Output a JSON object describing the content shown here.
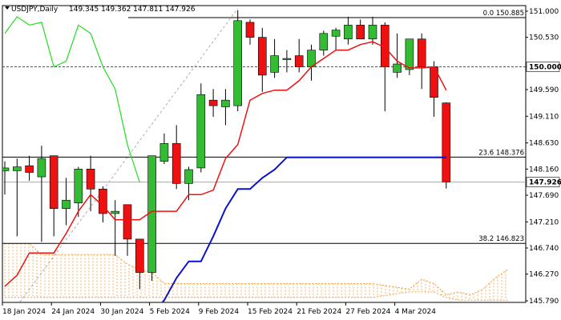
{
  "header": {
    "symbol": "USDJPY,Daily",
    "ohlc": "149.345 149.362 147.811 147.926"
  },
  "colors": {
    "bull_candle": "#33bb33",
    "bear_candle": "#ee1111",
    "tenkan": "#ee1111",
    "kijun": "#0a14c8",
    "chikou": "#22dd22",
    "cloud": "#f0a040",
    "fib_line": "#000000",
    "current_price_line": "#aaaaaa",
    "level_150_line": "#cc2222"
  },
  "chart_data": {
    "type": "candlestick",
    "title": "USDJPY,Daily",
    "ylim": [
      145.79,
      151.0
    ],
    "y_ticks": [
      "151.000",
      "150.530",
      "150.000",
      "149.590",
      "149.110",
      "148.630",
      "148.160",
      "147.690",
      "147.210",
      "146.740",
      "146.270",
      "145.790"
    ],
    "x_ticks": [
      {
        "index": 0,
        "label": "18 Jan 2024"
      },
      {
        "index": 4,
        "label": "24 Jan 2024"
      },
      {
        "index": 8,
        "label": "30 Jan 2024"
      },
      {
        "index": 12,
        "label": "5 Feb 2024"
      },
      {
        "index": 16,
        "label": "9 Feb 2024"
      },
      {
        "index": 20,
        "label": "15 Feb 2024"
      },
      {
        "index": 24,
        "label": "21 Feb 2024"
      },
      {
        "index": 28,
        "label": "27 Feb 2024"
      },
      {
        "index": 32,
        "label": "4 Mar 2024"
      }
    ],
    "candles": [
      {
        "o": 148.13,
        "h": 148.3,
        "l": 147.7,
        "c": 148.18
      },
      {
        "o": 148.13,
        "h": 148.35,
        "l": 146.95,
        "c": 148.2
      },
      {
        "o": 148.22,
        "h": 148.4,
        "l": 147.95,
        "c": 148.1
      },
      {
        "o": 148.02,
        "h": 148.58,
        "l": 146.85,
        "c": 148.35
      },
      {
        "o": 148.4,
        "h": 148.4,
        "l": 146.95,
        "c": 147.45
      },
      {
        "o": 147.45,
        "h": 148.0,
        "l": 147.15,
        "c": 147.6
      },
      {
        "o": 147.55,
        "h": 148.2,
        "l": 147.3,
        "c": 148.16
      },
      {
        "o": 148.16,
        "h": 148.4,
        "l": 147.4,
        "c": 147.8
      },
      {
        "o": 147.8,
        "h": 147.85,
        "l": 147.2,
        "c": 147.36
      },
      {
        "o": 147.36,
        "h": 147.6,
        "l": 146.6,
        "c": 147.4
      },
      {
        "o": 147.52,
        "h": 147.52,
        "l": 146.6,
        "c": 146.9
      },
      {
        "o": 146.9,
        "h": 146.9,
        "l": 146.0,
        "c": 146.3
      },
      {
        "o": 146.3,
        "h": 148.4,
        "l": 146.15,
        "c": 148.4
      },
      {
        "o": 148.3,
        "h": 148.8,
        "l": 148.25,
        "c": 148.62
      },
      {
        "o": 148.62,
        "h": 148.95,
        "l": 147.8,
        "c": 147.9
      },
      {
        "o": 147.9,
        "h": 148.2,
        "l": 147.6,
        "c": 148.15
      },
      {
        "o": 148.18,
        "h": 149.7,
        "l": 148.1,
        "c": 149.5
      },
      {
        "o": 149.4,
        "h": 149.6,
        "l": 149.1,
        "c": 149.3
      },
      {
        "o": 149.28,
        "h": 149.6,
        "l": 148.95,
        "c": 149.4
      },
      {
        "o": 149.3,
        "h": 151.02,
        "l": 149.2,
        "c": 150.83
      },
      {
        "o": 150.8,
        "h": 150.85,
        "l": 150.4,
        "c": 150.53
      },
      {
        "o": 150.53,
        "h": 150.7,
        "l": 149.55,
        "c": 149.85
      },
      {
        "o": 149.9,
        "h": 150.5,
        "l": 149.8,
        "c": 150.2
      },
      {
        "o": 150.13,
        "h": 150.3,
        "l": 149.9,
        "c": 150.15
      },
      {
        "o": 150.2,
        "h": 150.5,
        "l": 149.9,
        "c": 150.0
      },
      {
        "o": 150.0,
        "h": 150.4,
        "l": 149.75,
        "c": 150.3
      },
      {
        "o": 150.3,
        "h": 150.65,
        "l": 150.2,
        "c": 150.6
      },
      {
        "o": 150.55,
        "h": 150.7,
        "l": 150.3,
        "c": 150.66
      },
      {
        "o": 150.5,
        "h": 150.9,
        "l": 150.4,
        "c": 150.75
      },
      {
        "o": 150.75,
        "h": 150.85,
        "l": 150.5,
        "c": 150.5
      },
      {
        "o": 150.5,
        "h": 150.9,
        "l": 150.4,
        "c": 150.75
      },
      {
        "o": 150.75,
        "h": 150.8,
        "l": 149.2,
        "c": 150.0
      },
      {
        "o": 149.9,
        "h": 150.6,
        "l": 149.8,
        "c": 150.05
      },
      {
        "o": 149.95,
        "h": 150.5,
        "l": 149.85,
        "c": 150.5
      },
      {
        "o": 150.5,
        "h": 150.6,
        "l": 149.6,
        "c": 150.0
      },
      {
        "o": 150.0,
        "h": 150.1,
        "l": 149.1,
        "c": 149.45
      },
      {
        "o": 149.35,
        "h": 149.36,
        "l": 147.81,
        "c": 147.93
      }
    ],
    "tenkan": [
      [
        0,
        146.05
      ],
      [
        1,
        146.25
      ],
      [
        2,
        146.65
      ],
      [
        3,
        146.65
      ],
      [
        4,
        146.65
      ],
      [
        5,
        147.0
      ],
      [
        6,
        147.4
      ],
      [
        7,
        147.7
      ],
      [
        8,
        147.5
      ],
      [
        9,
        147.25
      ],
      [
        10,
        147.25
      ],
      [
        11,
        147.25
      ],
      [
        12,
        147.4
      ],
      [
        13,
        147.4
      ],
      [
        14,
        147.4
      ],
      [
        15,
        147.7
      ],
      [
        16,
        147.7
      ],
      [
        17,
        147.78
      ],
      [
        18,
        148.35
      ],
      [
        19,
        148.6
      ],
      [
        20,
        149.4
      ],
      [
        21,
        149.52
      ],
      [
        22,
        149.58
      ],
      [
        23,
        149.58
      ],
      [
        24,
        149.75
      ],
      [
        25,
        150.0
      ],
      [
        26,
        150.15
      ],
      [
        27,
        150.3
      ],
      [
        28,
        150.3
      ],
      [
        29,
        150.4
      ],
      [
        30,
        150.45
      ],
      [
        31,
        150.35
      ],
      [
        32,
        150.1
      ],
      [
        33,
        149.98
      ],
      [
        34,
        149.98
      ],
      [
        35,
        150.0
      ],
      [
        36,
        149.58
      ]
    ],
    "kijun": [
      [
        12,
        145.55
      ],
      [
        13,
        145.8
      ],
      [
        14,
        146.2
      ],
      [
        15,
        146.5
      ],
      [
        16,
        146.5
      ],
      [
        17,
        146.95
      ],
      [
        18,
        147.45
      ],
      [
        19,
        147.8
      ],
      [
        20,
        147.8
      ],
      [
        21,
        148.0
      ],
      [
        22,
        148.15
      ],
      [
        23,
        148.37
      ],
      [
        24,
        148.37
      ],
      [
        25,
        148.37
      ],
      [
        26,
        148.37
      ],
      [
        27,
        148.37
      ],
      [
        28,
        148.37
      ],
      [
        29,
        148.37
      ],
      [
        30,
        148.37
      ],
      [
        31,
        148.37
      ],
      [
        32,
        148.37
      ],
      [
        33,
        148.37
      ],
      [
        34,
        148.37
      ],
      [
        35,
        148.37
      ],
      [
        36,
        148.37
      ]
    ],
    "chikou": [
      [
        0,
        150.6
      ],
      [
        1,
        150.9
      ],
      [
        2,
        150.75
      ],
      [
        3,
        150.8
      ],
      [
        4,
        150.0
      ],
      [
        5,
        150.1
      ],
      [
        6,
        150.75
      ],
      [
        7,
        150.6
      ],
      [
        8,
        150.0
      ],
      [
        9,
        149.6
      ],
      [
        10,
        148.6
      ],
      [
        11,
        147.92
      ]
    ],
    "cloud_upper": [
      [
        0,
        146.82
      ],
      [
        2,
        146.82
      ],
      [
        3,
        146.62
      ],
      [
        5,
        146.62
      ],
      [
        6,
        146.62
      ],
      [
        7,
        146.62
      ],
      [
        8,
        146.62
      ],
      [
        9,
        146.62
      ],
      [
        10,
        146.45
      ],
      [
        11,
        146.35
      ],
      [
        12,
        146.3
      ],
      [
        13,
        146.1
      ],
      [
        14,
        146.1
      ],
      [
        20,
        146.1
      ],
      [
        30,
        146.1
      ],
      [
        33,
        146.0
      ],
      [
        34,
        146.18
      ],
      [
        35,
        146.1
      ],
      [
        36,
        145.9
      ],
      [
        37,
        145.95
      ],
      [
        38,
        145.9
      ],
      [
        39,
        146.0
      ],
      [
        40,
        146.2
      ],
      [
        41,
        146.35
      ]
    ],
    "cloud_lower": [
      [
        0,
        145.85
      ],
      [
        2,
        145.85
      ],
      [
        3,
        145.85
      ],
      [
        5,
        145.85
      ],
      [
        6,
        145.85
      ],
      [
        7,
        145.85
      ],
      [
        8,
        145.85
      ],
      [
        9,
        145.85
      ],
      [
        10,
        145.85
      ],
      [
        11,
        145.85
      ],
      [
        12,
        145.85
      ],
      [
        13,
        145.85
      ],
      [
        14,
        145.85
      ],
      [
        20,
        145.85
      ],
      [
        30,
        145.85
      ],
      [
        33,
        145.95
      ],
      [
        34,
        145.95
      ],
      [
        35,
        145.95
      ],
      [
        36,
        145.85
      ],
      [
        37,
        145.8
      ],
      [
        38,
        145.8
      ],
      [
        39,
        145.8
      ],
      [
        40,
        145.8
      ],
      [
        41,
        145.8
      ]
    ],
    "fib_levels": [
      {
        "value": 150.885,
        "label": "0.0 150.885"
      },
      {
        "value": 148.376,
        "label": "23.6 148.376"
      },
      {
        "value": 146.823,
        "label": "38.2 146.823"
      }
    ],
    "level_line": {
      "value": 150.0,
      "label": "150.000"
    },
    "current_price": {
      "value": 147.926,
      "label": "147.926"
    },
    "trendline": {
      "from": [
        1,
        145.7
      ],
      "to": [
        19,
        151.05
      ]
    },
    "grid": false
  }
}
